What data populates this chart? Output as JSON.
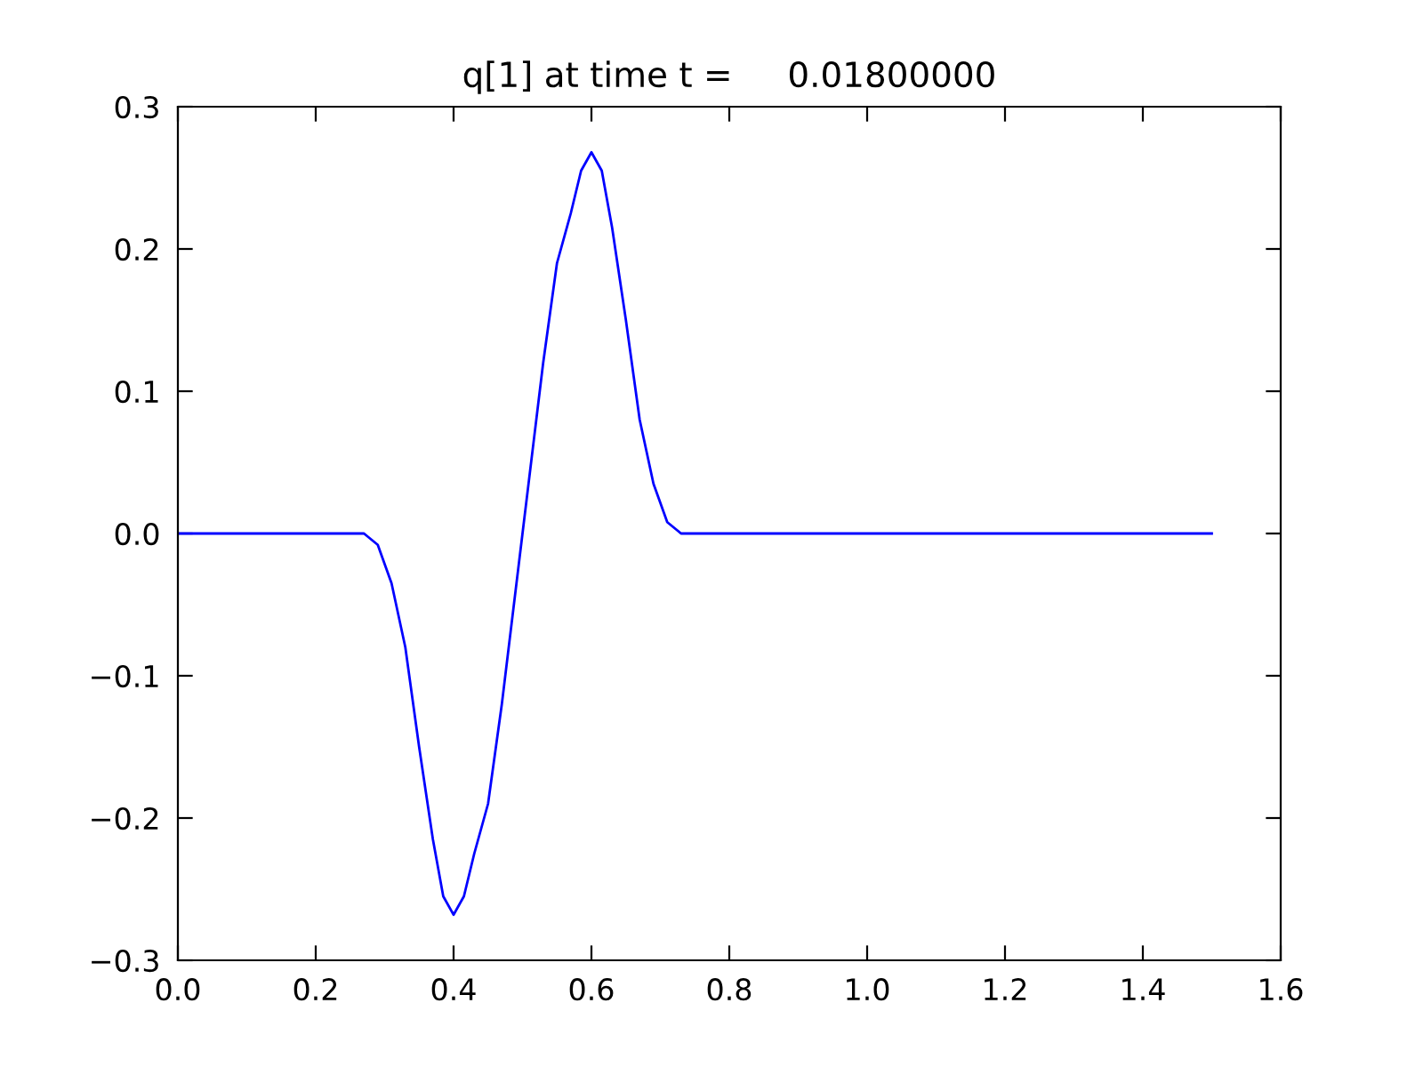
{
  "chart_data": {
    "type": "line",
    "title": "q[1] at time t =     0.01800000",
    "x": [
      0,
      0.27,
      0.29,
      0.31,
      0.33,
      0.35,
      0.37,
      0.385,
      0.4,
      0.415,
      0.43,
      0.45,
      0.47,
      0.5,
      0.53,
      0.55,
      0.57,
      0.585,
      0.6,
      0.615,
      0.63,
      0.65,
      0.67,
      0.69,
      0.71,
      0.73,
      1.5
    ],
    "series": [
      {
        "color": "#0000ff",
        "values": [
          0,
          0,
          -0.008,
          -0.035,
          -0.08,
          -0.15,
          -0.215,
          -0.255,
          -0.268,
          -0.255,
          -0.225,
          -0.19,
          -0.12,
          0,
          0.12,
          0.19,
          0.225,
          0.255,
          0.268,
          0.255,
          0.215,
          0.15,
          0.08,
          0.035,
          0.008,
          0,
          0
        ]
      }
    ],
    "xlim": [
      0,
      1.6
    ],
    "ylim": [
      -0.3,
      0.3
    ],
    "xticks": [
      {
        "value": 0,
        "label": "0.0"
      },
      0.2,
      0.4,
      0.6,
      0.8,
      {
        "value": 1,
        "label": "1.0"
      },
      1.2,
      1.4,
      1.6
    ],
    "yticks": [
      {
        "value": -0.3,
        "label": "−0.3"
      },
      {
        "value": -0.2,
        "label": "−0.2"
      },
      {
        "value": -0.1,
        "label": "−0.1"
      },
      {
        "value": 0,
        "label": "0.0"
      },
      0.1,
      0.2,
      0.3
    ],
    "grid": false,
    "legend": false
  }
}
